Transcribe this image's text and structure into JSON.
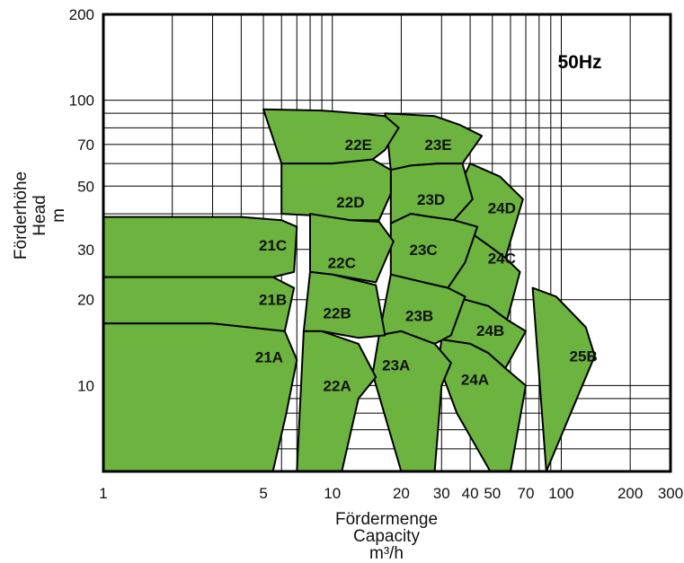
{
  "chart_data": {
    "type": "area",
    "title": "",
    "frequency_label": "50Hz",
    "xlabel": [
      "Fördermenge",
      "Capacity",
      "m³/h"
    ],
    "ylabel": [
      "Förderhöhe",
      "Head",
      "m"
    ],
    "x_scale": "log",
    "y_scale": "log",
    "xlim": [
      1,
      300
    ],
    "ylim": [
      5,
      200
    ],
    "grid": true,
    "x_ticks": [
      {
        "value": 1,
        "label": "1"
      },
      {
        "value": 5,
        "label": "5"
      },
      {
        "value": 10,
        "label": "10"
      },
      {
        "value": 20,
        "label": "20"
      },
      {
        "value": 30,
        "label": "30"
      },
      {
        "value": 40,
        "label": "40"
      },
      {
        "value": 50,
        "label": "50"
      },
      {
        "value": 70,
        "label": "70"
      },
      {
        "value": 100,
        "label": "100"
      },
      {
        "value": 200,
        "label": "200"
      },
      {
        "value": 300,
        "label": "300"
      }
    ],
    "y_ticks": [
      {
        "value": 10,
        "label": "10"
      },
      {
        "value": 20,
        "label": "20"
      },
      {
        "value": 30,
        "label": "30"
      },
      {
        "value": 50,
        "label": "50"
      },
      {
        "value": 70,
        "label": "70"
      },
      {
        "value": 100,
        "label": "100"
      },
      {
        "value": 200,
        "label": "200"
      }
    ],
    "x_gridlines": [
      1,
      2,
      3,
      4,
      5,
      6,
      7,
      8,
      9,
      10,
      20,
      30,
      40,
      50,
      60,
      70,
      80,
      90,
      100,
      200,
      300
    ],
    "y_gridlines": [
      5,
      6,
      7,
      8,
      9,
      10,
      20,
      30,
      40,
      50,
      60,
      70,
      80,
      90,
      100,
      200
    ],
    "fill_color": "#6cb33f",
    "regions": [
      {
        "name": "25B",
        "label_pos": [
          125,
          12.7
        ],
        "outline": [
          [
            86,
            5
          ],
          [
            140,
            12.7
          ],
          [
            128,
            16
          ],
          [
            95,
            20.5
          ],
          [
            75,
            22
          ]
        ]
      },
      {
        "name": "24D",
        "label_pos": [
          55,
          42
        ],
        "outline": [
          [
            40,
            60
          ],
          [
            54,
            54
          ],
          [
            68,
            45
          ],
          [
            57,
            28
          ],
          [
            48,
            31
          ],
          [
            37,
            36
          ],
          [
            31,
            39
          ]
        ]
      },
      {
        "name": "24C",
        "label_pos": [
          55,
          28
        ],
        "outline": [
          [
            31,
            39
          ],
          [
            37,
            36
          ],
          [
            48,
            31
          ],
          [
            57,
            28
          ],
          [
            66,
            25
          ],
          [
            58,
            17
          ],
          [
            48,
            19
          ],
          [
            38,
            20
          ],
          [
            31,
            21
          ]
        ]
      },
      {
        "name": "24B",
        "label_pos": [
          49,
          15.6
        ],
        "outline": [
          [
            31,
            21
          ],
          [
            38,
            20
          ],
          [
            48,
            19
          ],
          [
            58,
            17
          ],
          [
            70,
            15.5
          ],
          [
            57,
            11.5
          ],
          [
            48,
            13
          ],
          [
            40,
            14
          ],
          [
            30,
            14.5
          ]
        ]
      },
      {
        "name": "24A",
        "label_pos": [
          42,
          10.5
        ],
        "outline": [
          [
            30,
            14.5
          ],
          [
            40,
            14
          ],
          [
            48,
            13
          ],
          [
            57,
            11.5
          ],
          [
            70,
            10
          ],
          [
            60,
            5
          ],
          [
            49,
            5
          ],
          [
            35,
            8
          ],
          [
            29,
            12
          ]
        ]
      },
      {
        "name": "23E",
        "label_pos": [
          29,
          70
        ],
        "outline": [
          [
            17,
            90
          ],
          [
            28,
            88
          ],
          [
            36,
            82
          ],
          [
            45,
            75
          ],
          [
            37,
            60
          ],
          [
            29,
            60
          ],
          [
            22,
            59
          ],
          [
            18,
            57
          ]
        ]
      },
      {
        "name": "23D",
        "label_pos": [
          27,
          45
        ],
        "outline": [
          [
            18,
            57
          ],
          [
            22,
            59
          ],
          [
            29,
            60
          ],
          [
            37,
            60
          ],
          [
            41,
            45
          ],
          [
            34,
            38
          ],
          [
            27,
            39
          ],
          [
            22,
            40
          ],
          [
            18,
            37
          ]
        ]
      },
      {
        "name": "23C",
        "label_pos": [
          25,
          30
        ],
        "outline": [
          [
            18,
            37
          ],
          [
            22,
            40
          ],
          [
            27,
            39
          ],
          [
            34,
            38
          ],
          [
            43,
            36
          ],
          [
            38,
            27
          ],
          [
            32,
            22
          ],
          [
            25,
            23
          ],
          [
            18,
            24.5
          ]
        ]
      },
      {
        "name": "23B",
        "label_pos": [
          24,
          17.6
        ],
        "outline": [
          [
            18,
            24.5
          ],
          [
            25,
            23
          ],
          [
            32,
            22
          ],
          [
            38,
            20.5
          ],
          [
            33,
            15
          ],
          [
            28,
            14
          ],
          [
            20,
            15.5
          ],
          [
            16,
            15
          ]
        ]
      },
      {
        "name": "23A",
        "label_pos": [
          19,
          11.8
        ],
        "outline": [
          [
            16,
            15
          ],
          [
            20,
            15.5
          ],
          [
            28,
            14
          ],
          [
            33,
            12
          ],
          [
            30,
            10
          ],
          [
            28,
            5
          ],
          [
            20,
            5
          ],
          [
            15,
            11
          ]
        ]
      },
      {
        "name": "22E",
        "label_pos": [
          13,
          70
        ],
        "outline": [
          [
            5,
            93
          ],
          [
            9,
            92
          ],
          [
            13,
            90
          ],
          [
            17,
            88
          ],
          [
            19.5,
            80
          ],
          [
            17,
            67
          ],
          [
            15,
            62
          ],
          [
            10,
            60
          ],
          [
            6,
            60
          ]
        ]
      },
      {
        "name": "22D",
        "label_pos": [
          12,
          44
        ],
        "outline": [
          [
            6,
            60
          ],
          [
            10,
            60
          ],
          [
            15,
            62
          ],
          [
            18,
            57
          ],
          [
            18,
            47
          ],
          [
            16,
            38
          ],
          [
            12,
            38
          ],
          [
            8,
            39.5
          ],
          [
            6,
            40
          ]
        ]
      },
      {
        "name": "22C",
        "label_pos": [
          11,
          27
        ],
        "outline": [
          [
            8,
            40
          ],
          [
            12,
            38
          ],
          [
            16,
            37.5
          ],
          [
            18.5,
            32
          ],
          [
            15.5,
            23
          ],
          [
            10,
            24.5
          ],
          [
            8,
            25
          ]
        ]
      },
      {
        "name": "22B",
        "label_pos": [
          10.5,
          18
        ],
        "outline": [
          [
            8,
            25
          ],
          [
            10,
            24.5
          ],
          [
            15.5,
            22.5
          ],
          [
            17,
            15
          ],
          [
            13,
            14.7
          ],
          [
            9,
            15.5
          ],
          [
            7.5,
            15.5
          ]
        ]
      },
      {
        "name": "22A",
        "label_pos": [
          10.5,
          10
        ],
        "outline": [
          [
            7.5,
            15.5
          ],
          [
            9,
            15.5
          ],
          [
            13,
            14
          ],
          [
            15.5,
            10.7
          ],
          [
            13,
            9
          ],
          [
            11,
            5
          ],
          [
            7,
            5
          ]
        ]
      },
      {
        "name": "21C",
        "label_pos": [
          5.5,
          31
        ],
        "outline": [
          [
            1,
            39
          ],
          [
            4,
            39
          ],
          [
            6,
            38
          ],
          [
            7,
            36
          ],
          [
            6.8,
            25
          ],
          [
            5.5,
            24
          ],
          [
            3,
            24
          ],
          [
            1,
            24
          ]
        ]
      },
      {
        "name": "21B",
        "label_pos": [
          5.5,
          20
        ],
        "outline": [
          [
            1,
            24
          ],
          [
            3,
            24
          ],
          [
            5.5,
            24
          ],
          [
            6.8,
            22
          ],
          [
            6.2,
            15.5
          ],
          [
            3,
            16.5
          ],
          [
            1,
            16.5
          ]
        ]
      },
      {
        "name": "21A",
        "label_pos": [
          5.3,
          12.6
        ],
        "outline": [
          [
            1,
            16.5
          ],
          [
            3,
            16.5
          ],
          [
            6.2,
            15.5
          ],
          [
            7,
            12.3
          ],
          [
            6.3,
            8
          ],
          [
            5.5,
            5
          ],
          [
            1,
            5
          ]
        ]
      }
    ]
  }
}
